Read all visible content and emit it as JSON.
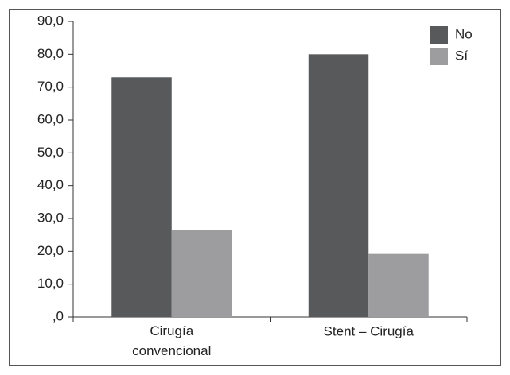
{
  "chart_data": {
    "type": "bar",
    "categories": [
      "Cirugía convencional",
      "Stent – Cirugía"
    ],
    "series": [
      {
        "name": "No",
        "color": "#58595b",
        "values": [
          73.0,
          80.0
        ]
      },
      {
        "name": "Sí",
        "color": "#9d9d9f",
        "values": [
          26.6,
          19.2
        ]
      }
    ],
    "ylim": [
      0,
      90
    ],
    "yticks": [
      {
        "value": 0,
        "label": ",0"
      },
      {
        "value": 10,
        "label": "10,0"
      },
      {
        "value": 20,
        "label": "20,0"
      },
      {
        "value": 30,
        "label": "30,0"
      },
      {
        "value": 40,
        "label": "40,0"
      },
      {
        "value": 50,
        "label": "50,0"
      },
      {
        "value": 60,
        "label": "60,0"
      },
      {
        "value": 70,
        "label": "70,0"
      },
      {
        "value": 80,
        "label": "80,0"
      },
      {
        "value": 90,
        "label": "90,0"
      }
    ],
    "grid": false,
    "legend": "top-right"
  }
}
